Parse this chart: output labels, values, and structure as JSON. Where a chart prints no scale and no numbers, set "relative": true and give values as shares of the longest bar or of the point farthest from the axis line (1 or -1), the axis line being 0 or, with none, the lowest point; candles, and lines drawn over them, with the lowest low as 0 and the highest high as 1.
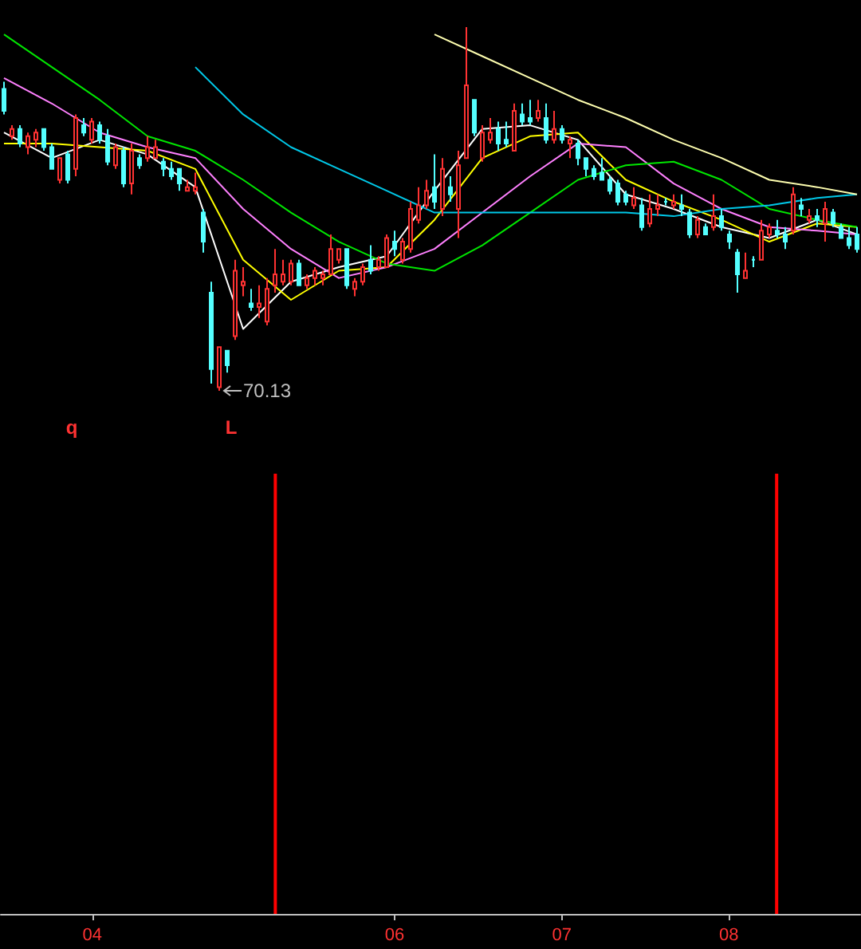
{
  "chart_data": [
    {
      "type": "candlestick",
      "relative": true,
      "tick_labels": false,
      "marker": "none",
      "categories": [
        null,
        null,
        null,
        null,
        null,
        null,
        null,
        null,
        null,
        null,
        null,
        "04",
        null,
        null,
        null,
        null,
        null,
        null,
        null,
        null,
        null,
        null,
        null,
        null,
        null,
        null,
        null,
        null,
        null,
        null,
        null,
        null,
        null,
        null,
        null,
        null,
        null,
        null,
        null,
        null,
        null,
        null,
        null,
        null,
        null,
        null,
        null,
        null,
        null,
        "06",
        null,
        null,
        null,
        null,
        null,
        null,
        null,
        null,
        null,
        null,
        null,
        null,
        null,
        null,
        null,
        null,
        null,
        null,
        null,
        null,
        "07",
        null,
        null,
        null,
        null,
        null,
        null,
        null,
        null,
        null,
        null,
        null,
        null,
        null,
        null,
        null,
        null,
        null,
        null,
        null,
        null,
        "08",
        null,
        null,
        null,
        null,
        null,
        null,
        null,
        null,
        null,
        null,
        null,
        null,
        null,
        null,
        null,
        null
      ],
      "ohlc": [
        [
          0.83,
          0.85,
          0.76,
          0.77
        ],
        [
          0.7,
          0.73,
          0.69,
          0.72
        ],
        [
          0.72,
          0.73,
          0.67,
          0.68
        ],
        [
          0.67,
          0.71,
          0.65,
          0.7
        ],
        [
          0.69,
          0.72,
          0.67,
          0.71
        ],
        [
          0.72,
          0.72,
          0.66,
          0.67
        ],
        [
          0.67,
          0.68,
          0.61,
          0.61
        ],
        [
          0.58,
          0.64,
          0.57,
          0.64
        ],
        [
          0.65,
          0.66,
          0.57,
          0.58
        ],
        [
          0.61,
          0.76,
          0.59,
          0.75
        ],
        [
          0.73,
          0.75,
          0.7,
          0.71
        ],
        [
          0.69,
          0.75,
          0.68,
          0.74
        ],
        [
          0.73,
          0.74,
          0.68,
          0.69
        ],
        [
          0.7,
          0.72,
          0.62,
          0.63
        ],
        [
          0.62,
          0.68,
          0.61,
          0.67
        ],
        [
          0.66,
          0.67,
          0.56,
          0.57
        ],
        [
          0.57,
          0.68,
          0.54,
          0.66
        ],
        [
          0.64,
          0.65,
          0.61,
          0.62
        ],
        [
          0.64,
          0.7,
          0.63,
          0.67
        ],
        [
          0.64,
          0.69,
          0.64,
          0.67
        ],
        [
          0.63,
          0.64,
          0.59,
          0.61
        ],
        [
          0.61,
          0.63,
          0.58,
          0.59
        ],
        [
          0.61,
          0.61,
          0.55,
          0.57
        ],
        [
          0.55,
          0.58,
          0.55,
          0.56
        ],
        [
          0.55,
          0.6,
          0.54,
          0.56
        ],
        [
          0.49,
          0.5,
          0.38,
          0.41
        ],
        [
          0.27,
          0.3,
          0.02,
          0.06
        ],
        [
          0.01,
          0.12,
          0,
          0.12
        ],
        [
          0.11,
          0.11,
          0.05,
          0.07
        ],
        [
          0.15,
          0.36,
          0.14,
          0.33
        ],
        [
          0.29,
          0.34,
          0.26,
          0.3
        ],
        [
          0.24,
          0.28,
          0.22,
          0.23
        ],
        [
          0.23,
          0.29,
          0.2,
          0.24
        ],
        [
          0.19,
          0.31,
          0.18,
          0.28
        ],
        [
          0.29,
          0.39,
          0.27,
          0.32
        ],
        [
          0.3,
          0.36,
          0.29,
          0.32
        ],
        [
          0.3,
          0.36,
          0.29,
          0.35
        ],
        [
          0.35,
          0.36,
          0.29,
          0.29
        ],
        [
          0.29,
          0.32,
          0.28,
          0.31
        ],
        [
          0.31,
          0.34,
          0.29,
          0.33
        ],
        [
          0.31,
          0.33,
          0.29,
          0.32
        ],
        [
          0.32,
          0.43,
          0.32,
          0.39
        ],
        [
          0.36,
          0.39,
          0.35,
          0.39
        ],
        [
          0.39,
          0.39,
          0.28,
          0.29
        ],
        [
          0.28,
          0.31,
          0.26,
          0.3
        ],
        [
          0.3,
          0.35,
          0.29,
          0.34
        ],
        [
          0.36,
          0.4,
          0.32,
          0.33
        ],
        [
          0.34,
          0.37,
          0.33,
          0.36
        ],
        [
          0.34,
          0.43,
          0.34,
          0.42
        ],
        [
          0.41,
          0.44,
          0.37,
          0.39
        ],
        [
          0.36,
          0.42,
          0.35,
          0.41
        ],
        [
          0.39,
          0.52,
          0.38,
          0.5
        ],
        [
          0.47,
          0.56,
          0.46,
          0.51
        ],
        [
          0.51,
          0.58,
          0.5,
          0.55
        ],
        [
          0.56,
          0.65,
          0.5,
          0.52
        ],
        [
          0.5,
          0.64,
          0.48,
          0.61
        ],
        [
          0.56,
          0.59,
          0.52,
          0.54
        ],
        [
          0.5,
          0.66,
          0.42,
          0.62
        ],
        [
          0.64,
          1,
          0.64,
          0.84
        ],
        [
          0.8,
          0.8,
          0.7,
          0.71
        ],
        [
          0.64,
          0.73,
          0.63,
          0.71
        ],
        [
          0.69,
          0.75,
          0.68,
          0.71
        ],
        [
          0.72,
          0.74,
          0.66,
          0.68
        ],
        [
          0.69,
          0.74,
          0.67,
          0.68
        ],
        [
          0.66,
          0.79,
          0.66,
          0.77
        ],
        [
          0.76,
          0.79,
          0.73,
          0.74
        ],
        [
          0.75,
          0.8,
          0.73,
          0.74
        ],
        [
          0.75,
          0.8,
          0.74,
          0.77
        ],
        [
          0.75,
          0.79,
          0.68,
          0.69
        ],
        [
          0.69,
          0.77,
          0.68,
          0.72
        ],
        [
          0.72,
          0.73,
          0.68,
          0.69
        ],
        [
          0.68,
          0.7,
          0.64,
          0.69
        ],
        [
          0.68,
          0.69,
          0.62,
          0.64
        ],
        [
          0.64,
          0.64,
          0.59,
          0.61
        ],
        [
          0.61,
          0.62,
          0.58,
          0.59
        ],
        [
          0.6,
          0.64,
          0.58,
          0.58
        ],
        [
          0.58,
          0.59,
          0.54,
          0.55
        ],
        [
          0.57,
          0.58,
          0.51,
          0.52
        ],
        [
          0.54,
          0.55,
          0.51,
          0.52
        ],
        [
          0.51,
          0.56,
          0.5,
          0.53
        ],
        [
          0.51,
          0.53,
          0.44,
          0.45
        ],
        [
          0.46,
          0.54,
          0.45,
          0.5
        ],
        [
          0.5,
          0.54,
          0.48,
          0.51
        ],
        [
          0.52,
          0.53,
          0.51,
          0.52
        ],
        [
          0.51,
          0.54,
          0.5,
          0.52
        ],
        [
          0.51,
          0.54,
          0.48,
          0.5
        ],
        [
          0.49,
          0.5,
          0.42,
          0.43
        ],
        [
          0.43,
          0.48,
          0.42,
          0.47
        ],
        [
          0.45,
          0.46,
          0.43,
          0.43
        ],
        [
          0.45,
          0.54,
          0.44,
          0.48
        ],
        [
          0.48,
          0.5,
          0.44,
          0.45
        ],
        [
          0.43,
          0.44,
          0.39,
          0.41
        ],
        [
          0.38,
          0.39,
          0.27,
          0.32
        ],
        [
          0.31,
          0.38,
          0.31,
          0.33
        ],
        [
          0.36,
          0.37,
          0.34,
          0.36
        ],
        [
          0.36,
          0.47,
          0.36,
          0.44
        ],
        [
          0.43,
          0.46,
          0.42,
          0.45
        ],
        [
          0.44,
          0.47,
          0.42,
          0.43
        ],
        [
          0.43,
          0.45,
          0.39,
          0.41
        ],
        [
          0.44,
          0.56,
          0.43,
          0.54
        ],
        [
          0.51,
          0.53,
          0.48,
          0.5
        ],
        [
          0.47,
          0.5,
          0.46,
          0.48
        ],
        [
          0.48,
          0.5,
          0.45,
          0.47
        ],
        [
          0.46,
          0.52,
          0.41,
          0.5
        ],
        [
          0.49,
          0.5,
          0.45,
          0.46
        ],
        [
          0.45,
          0.46,
          0.42,
          0.42
        ],
        [
          0.42,
          0.45,
          0.39,
          0.4
        ],
        [
          0.43,
          0.45,
          0.38,
          0.39
        ]
      ],
      "colors": [
        "#54ffff",
        "#ff3232",
        "#54ffff",
        "#ff3232",
        "#ff3232",
        "#54ffff",
        "#54ffff",
        "#ff3232",
        "#54ffff",
        "#ff3232",
        "#54ffff",
        "#ff3232",
        "#54ffff",
        "#54ffff",
        "#ff3232",
        "#54ffff",
        "#ff3232",
        "#54ffff",
        "#ff3232",
        "#ff3232",
        "#54ffff",
        "#54ffff",
        "#54ffff",
        "#ff3232",
        "#ff3232",
        "#54ffff",
        "#54ffff",
        "#ff3232",
        "#54ffff",
        "#ff3232",
        "#ff3232",
        "#54ffff",
        "#ff3232",
        "#ff3232",
        "#ff3232",
        "#ff3232",
        "#ff3232",
        "#54ffff",
        "#ff3232",
        "#ff3232",
        "#ff3232",
        "#ff3232",
        "#ff3232",
        "#54ffff",
        "#ff3232",
        "#ff3232",
        "#54ffff",
        "#ff3232",
        "#ff3232",
        "#54ffff",
        "#ff3232",
        "#ff3232",
        "#ff3232",
        "#ff3232",
        "#54ffff",
        "#ff3232",
        "#54ffff",
        "#ff3232",
        "#ff3232",
        "#54ffff",
        "#ff3232",
        "#ff3232",
        "#54ffff",
        "#54ffff",
        "#ff3232",
        "#54ffff",
        "#54ffff",
        "#ff3232",
        "#54ffff",
        "#ff3232",
        "#54ffff",
        "#ff3232",
        "#54ffff",
        "#54ffff",
        "#54ffff",
        "#54ffff",
        "#54ffff",
        "#54ffff",
        "#54ffff",
        "#ff3232",
        "#54ffff",
        "#ff3232",
        "#ff3232",
        "#54ffff",
        "#ff3232",
        "#54ffff",
        "#54ffff",
        "#ff3232",
        "#54ffff",
        "#ff3232",
        "#54ffff",
        "#54ffff",
        "#54ffff",
        "#ff3232",
        "#54ffff",
        "#ff3232",
        "#ff3232",
        "#54ffff",
        "#54ffff",
        "#ff3232",
        "#54ffff",
        "#ff3232",
        "#54ffff",
        "#ff3232",
        "#54ffff",
        "#54ffff",
        "#54ffff",
        "#54ffff"
      ],
      "series": [
        {
          "type": "line",
          "color": "#ffffff",
          "values": [
            0.71,
            null,
            null,
            null,
            null,
            null,
            0.64,
            null,
            null,
            null,
            null,
            null,
            0.69,
            null,
            null,
            null,
            null,
            null,
            0.65,
            null,
            null,
            null,
            null,
            null,
            0.56,
            null,
            null,
            null,
            null,
            null,
            0.17,
            null,
            null,
            null,
            null,
            null,
            0.3,
            null,
            null,
            null,
            null,
            null,
            0.34,
            null,
            null,
            null,
            null,
            null,
            0.37,
            null,
            null,
            null,
            null,
            null,
            0.55,
            null,
            null,
            null,
            null,
            null,
            0.72,
            null,
            null,
            null,
            null,
            null,
            0.73,
            null,
            null,
            null,
            null,
            null,
            0.69,
            null,
            null,
            null,
            null,
            null,
            0.54,
            null,
            null,
            null,
            null,
            null,
            0.5,
            null,
            null,
            null,
            null,
            null,
            0.45,
            null,
            null,
            null,
            null,
            null,
            0.42,
            null,
            null,
            null,
            null,
            null,
            0.47,
            null,
            null,
            null,
            null,
            0.43
          ]
        },
        {
          "type": "line",
          "color": "#ffff00",
          "values": [
            0.68,
            null,
            null,
            null,
            null,
            null,
            0.68,
            null,
            null,
            null,
            null,
            null,
            0.67,
            null,
            null,
            null,
            null,
            null,
            0.66,
            null,
            null,
            null,
            null,
            null,
            0.61,
            null,
            null,
            null,
            null,
            null,
            0.36,
            null,
            null,
            null,
            null,
            null,
            0.25,
            null,
            null,
            null,
            null,
            null,
            0.33,
            null,
            null,
            null,
            null,
            null,
            0.34,
            null,
            null,
            null,
            null,
            null,
            0.47,
            null,
            null,
            null,
            null,
            null,
            0.64,
            null,
            null,
            null,
            null,
            null,
            0.7,
            null,
            null,
            null,
            null,
            null,
            0.71,
            null,
            null,
            null,
            null,
            null,
            0.58,
            null,
            null,
            null,
            null,
            null,
            0.52,
            null,
            null,
            null,
            null,
            null,
            0.47,
            null,
            null,
            null,
            null,
            null,
            0.41,
            null,
            null,
            null,
            null,
            null,
            0.46,
            null,
            null,
            null,
            null,
            0.45
          ]
        },
        {
          "type": "line",
          "color": "#ff80ff",
          "values": [
            0.86,
            null,
            null,
            null,
            null,
            null,
            0.79,
            null,
            null,
            null,
            null,
            null,
            0.71,
            null,
            null,
            null,
            null,
            null,
            0.67,
            null,
            null,
            null,
            null,
            null,
            0.64,
            null,
            null,
            null,
            null,
            null,
            0.5,
            null,
            null,
            null,
            null,
            null,
            0.39,
            null,
            null,
            null,
            null,
            null,
            0.31,
            null,
            null,
            null,
            null,
            null,
            0.34,
            null,
            null,
            null,
            null,
            null,
            0.39,
            null,
            null,
            null,
            null,
            null,
            0.49,
            null,
            null,
            null,
            null,
            null,
            0.59,
            null,
            null,
            null,
            null,
            null,
            0.68,
            null,
            null,
            null,
            null,
            null,
            0.67,
            null,
            null,
            null,
            null,
            null,
            0.57,
            null,
            null,
            null,
            null,
            null,
            0.5,
            null,
            null,
            null,
            null,
            null,
            0.45,
            null,
            null,
            null,
            null,
            null,
            0.44,
            null,
            null,
            null,
            null,
            0.43
          ]
        },
        {
          "type": "line",
          "color": "#00e600",
          "values": [
            0.98,
            null,
            null,
            null,
            null,
            null,
            0.89,
            null,
            null,
            null,
            null,
            null,
            0.8,
            null,
            null,
            null,
            null,
            null,
            0.7,
            null,
            null,
            null,
            null,
            null,
            0.66,
            null,
            null,
            null,
            null,
            null,
            0.58,
            null,
            null,
            null,
            null,
            null,
            0.49,
            null,
            null,
            null,
            null,
            null,
            0.41,
            null,
            null,
            null,
            null,
            null,
            0.35,
            null,
            null,
            null,
            null,
            null,
            0.33,
            null,
            null,
            null,
            null,
            null,
            0.4,
            null,
            null,
            null,
            null,
            null,
            0.49,
            null,
            null,
            null,
            null,
            null,
            0.58,
            null,
            null,
            null,
            null,
            null,
            0.62,
            null,
            null,
            null,
            null,
            null,
            0.63,
            null,
            null,
            null,
            null,
            null,
            0.58,
            null,
            null,
            null,
            null,
            null,
            0.5,
            null,
            null,
            null,
            null,
            null,
            0.47,
            null,
            null,
            null,
            null,
            0.45
          ]
        },
        {
          "type": "line",
          "color": "#00c8e8",
          "values": [
            null,
            null,
            null,
            null,
            null,
            null,
            null,
            null,
            null,
            null,
            null,
            null,
            null,
            null,
            null,
            null,
            null,
            null,
            null,
            null,
            null,
            null,
            null,
            null,
            0.89,
            null,
            null,
            null,
            null,
            null,
            0.76,
            null,
            null,
            null,
            null,
            null,
            0.67,
            null,
            null,
            null,
            null,
            null,
            0.61,
            null,
            null,
            null,
            null,
            null,
            0.55,
            null,
            null,
            null,
            null,
            null,
            0.49,
            null,
            null,
            null,
            null,
            null,
            0.49,
            null,
            null,
            null,
            null,
            null,
            0.49,
            null,
            null,
            null,
            null,
            null,
            0.49,
            null,
            null,
            null,
            null,
            null,
            0.49,
            null,
            null,
            null,
            null,
            null,
            0.48,
            null,
            null,
            null,
            null,
            null,
            0.5,
            null,
            null,
            null,
            null,
            null,
            0.51,
            null,
            null,
            null,
            null,
            null,
            0.53,
            null,
            null,
            null,
            null,
            0.54
          ]
        },
        {
          "type": "line",
          "color": "#ffffb0",
          "values": [
            null,
            null,
            null,
            null,
            null,
            null,
            null,
            null,
            null,
            null,
            null,
            null,
            null,
            null,
            null,
            null,
            null,
            null,
            null,
            null,
            null,
            null,
            null,
            null,
            null,
            null,
            null,
            null,
            null,
            null,
            null,
            null,
            null,
            null,
            null,
            null,
            null,
            null,
            null,
            null,
            null,
            null,
            null,
            null,
            null,
            null,
            null,
            null,
            null,
            null,
            null,
            null,
            null,
            null,
            0.98,
            null,
            null,
            null,
            null,
            null,
            0.92,
            null,
            null,
            null,
            null,
            null,
            0.86,
            null,
            null,
            null,
            null,
            null,
            0.8,
            null,
            null,
            null,
            null,
            null,
            0.75,
            null,
            null,
            null,
            null,
            null,
            0.69,
            null,
            null,
            null,
            null,
            null,
            0.64,
            null,
            null,
            null,
            null,
            null,
            0.58,
            null,
            null,
            null,
            null,
            null,
            0.56,
            null,
            null,
            null,
            null,
            0.54
          ]
        }
      ],
      "annotations": [
        "q",
        "L",
        "70.13"
      ]
    },
    {
      "type": "bar",
      "relative": true,
      "color": "#ff0000",
      "categories": [
        null,
        null,
        null,
        null,
        null,
        null,
        null,
        null,
        null,
        null,
        null,
        "04",
        null,
        null,
        null,
        null,
        null,
        null,
        null,
        null,
        null,
        null,
        null,
        null,
        null,
        null,
        null,
        null,
        null,
        null,
        null,
        null,
        null,
        null,
        null,
        null,
        null,
        null,
        null,
        null,
        null,
        null,
        null,
        null,
        null,
        null,
        null,
        null,
        null,
        "06",
        null,
        null,
        null,
        null,
        null,
        null,
        null,
        null,
        null,
        null,
        null,
        null,
        null,
        null,
        null,
        null,
        null,
        null,
        null,
        null,
        "07",
        null,
        null,
        null,
        null,
        null,
        null,
        null,
        null,
        null,
        null,
        null,
        null,
        null,
        null,
        null,
        null,
        null,
        null,
        null,
        null,
        "08",
        null,
        null,
        null,
        null,
        null,
        null,
        null,
        null,
        null,
        null,
        null,
        null,
        null,
        null,
        null,
        null
      ],
      "values": [
        null,
        null,
        null,
        null,
        null,
        null,
        null,
        null,
        null,
        null,
        null,
        null,
        null,
        null,
        null,
        null,
        null,
        null,
        null,
        null,
        null,
        null,
        null,
        null,
        null,
        null,
        null,
        null,
        null,
        null,
        null,
        null,
        null,
        null,
        1,
        null,
        null,
        null,
        null,
        null,
        null,
        null,
        null,
        null,
        null,
        null,
        null,
        null,
        null,
        null,
        null,
        null,
        null,
        null,
        null,
        null,
        null,
        null,
        null,
        null,
        null,
        null,
        null,
        null,
        null,
        null,
        null,
        null,
        null,
        null,
        null,
        null,
        null,
        null,
        null,
        null,
        null,
        null,
        null,
        null,
        null,
        null,
        null,
        null,
        null,
        null,
        null,
        null,
        null,
        null,
        null,
        null,
        null,
        null,
        null,
        null,
        null,
        1,
        null,
        null,
        null,
        null,
        null,
        null,
        null,
        null,
        null,
        null
      ]
    }
  ]
}
